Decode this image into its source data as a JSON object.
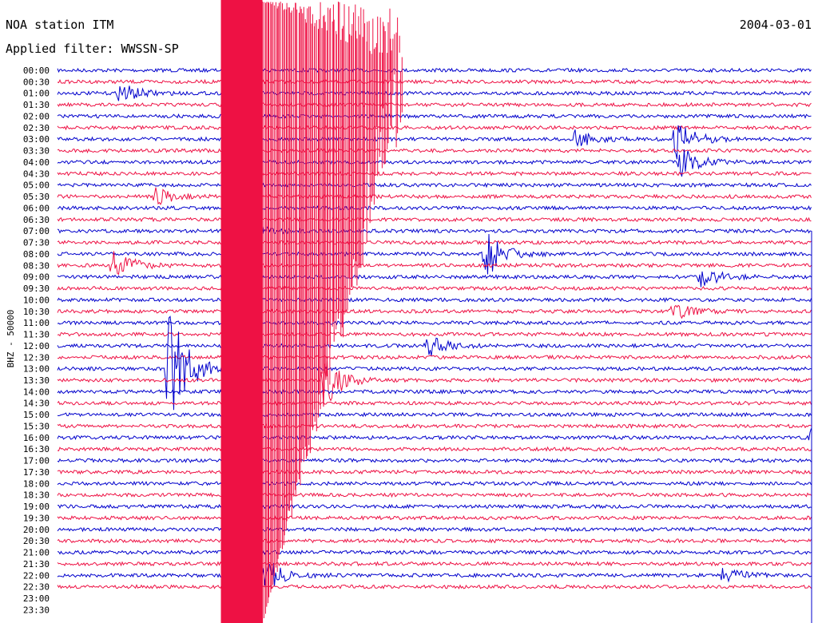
{
  "header": {
    "title": "NOA station ITM",
    "filter": "Applied filter: WWSSN-SP",
    "date": "2004-03-01"
  },
  "chart_data": {
    "type": "line",
    "title": "NOA station ITM",
    "subtitle": "Applied filter: WWSSN-SP",
    "ylabel": "BHZ - 50000",
    "xlabel": "",
    "traces": [
      "00:00",
      "00:30",
      "01:00",
      "01:30",
      "02:00",
      "02:30",
      "03:00",
      "03:30",
      "04:00",
      "04:30",
      "05:00",
      "05:30",
      "06:00",
      "06:30",
      "07:00",
      "07:30",
      "08:00",
      "08:30",
      "09:00",
      "09:30",
      "10:00",
      "10:30",
      "11:00",
      "11:30",
      "12:00",
      "12:30",
      "13:00",
      "13:30",
      "14:00",
      "14:30",
      "15:00",
      "15:30",
      "16:00",
      "16:30",
      "17:00",
      "17:30",
      "18:00",
      "18:30",
      "19:00",
      "19:30",
      "20:00",
      "20:30",
      "21:00",
      "21:30",
      "22:00",
      "22:30",
      "23:00",
      "23:30"
    ],
    "trace_colors": [
      "#0000cc",
      "#ee1144"
    ],
    "x_range_minutes": [
      0,
      30
    ],
    "data_ends_after": "22:30",
    "events": [
      {
        "trace": "01:00",
        "minute": 2.5,
        "amplitude": 0.6
      },
      {
        "trace": "03:00",
        "minute": 20.6,
        "amplitude": 0.5
      },
      {
        "trace": "03:00",
        "minute": 24.6,
        "amplitude": 1.2
      },
      {
        "trace": "04:00",
        "minute": 24.8,
        "amplitude": 0.8
      },
      {
        "trace": "05:30",
        "minute": 3.9,
        "amplitude": 0.5
      },
      {
        "trace": "07:00",
        "minute": 7.3,
        "amplitude": 0.9
      },
      {
        "trace": "08:00",
        "minute": 17.0,
        "amplitude": 1.4
      },
      {
        "trace": "08:30",
        "minute": 2.2,
        "amplitude": 1.0
      },
      {
        "trace": "09:00",
        "minute": 25.6,
        "amplitude": 0.6
      },
      {
        "trace": "10:30",
        "minute": 24.5,
        "amplitude": 0.5
      },
      {
        "trace": "12:00",
        "minute": 14.7,
        "amplitude": 0.6
      },
      {
        "trace": "13:00",
        "minute": 4.4,
        "amplitude": 4.0
      },
      {
        "trace": "13:30",
        "minute": 10.6,
        "amplitude": 1.6
      },
      {
        "trace": "14:30",
        "minute": 31.2,
        "amplitude": 1.8
      },
      {
        "trace": "16:00",
        "minute": 30.0,
        "amplitude": 3.0
      },
      {
        "trace": "22:00",
        "minute": 8.1,
        "amplitude": 1.3
      },
      {
        "trace": "22:00",
        "minute": 26.5,
        "amplitude": 0.5
      }
    ],
    "large_event": {
      "trace": "00:00",
      "minute": 6.5,
      "saturated_through": "23:30"
    }
  }
}
